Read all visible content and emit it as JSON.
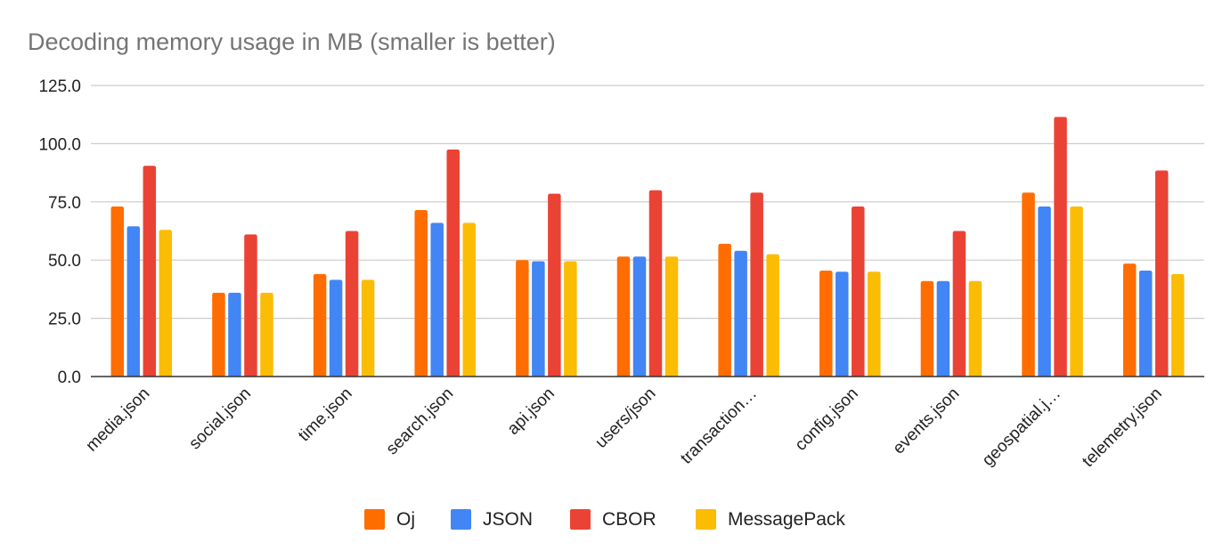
{
  "chart_data": {
    "type": "bar",
    "title": "Decoding memory usage in MB (smaller is better)",
    "xlabel": "",
    "ylabel": "",
    "ylim": [
      0,
      125
    ],
    "yticks": [
      "0.0",
      "25.0",
      "50.0",
      "75.0",
      "100.0",
      "125.0"
    ],
    "ytick_values": [
      0,
      25,
      50,
      75,
      100,
      125
    ],
    "categories": [
      "media.json",
      "social.json",
      "time.json",
      "search.json",
      "api.json",
      "users/json",
      "transaction…",
      "config.json",
      "events.json",
      "geospatial.j…",
      "telemetry.json"
    ],
    "grid": true,
    "legend_position": "bottom",
    "series": [
      {
        "name": "Oj",
        "color": "#ff6d01",
        "values": [
          73,
          36,
          44,
          71.5,
          50,
          51.5,
          57,
          45.5,
          41,
          79,
          48.5
        ]
      },
      {
        "name": "JSON",
        "color": "#4285f4",
        "values": [
          64.5,
          36,
          41.5,
          66,
          49.5,
          51.5,
          54,
          45,
          41,
          73,
          45.5
        ]
      },
      {
        "name": "CBOR",
        "color": "#ea4335",
        "values": [
          90.5,
          61,
          62.5,
          97.5,
          78.5,
          80,
          79,
          73,
          62.5,
          111.5,
          88.5
        ]
      },
      {
        "name": "MessagePack",
        "color": "#fbbc04",
        "values": [
          63,
          36,
          41.5,
          66,
          49.5,
          51.5,
          52.5,
          45,
          41,
          73,
          44
        ]
      }
    ]
  }
}
